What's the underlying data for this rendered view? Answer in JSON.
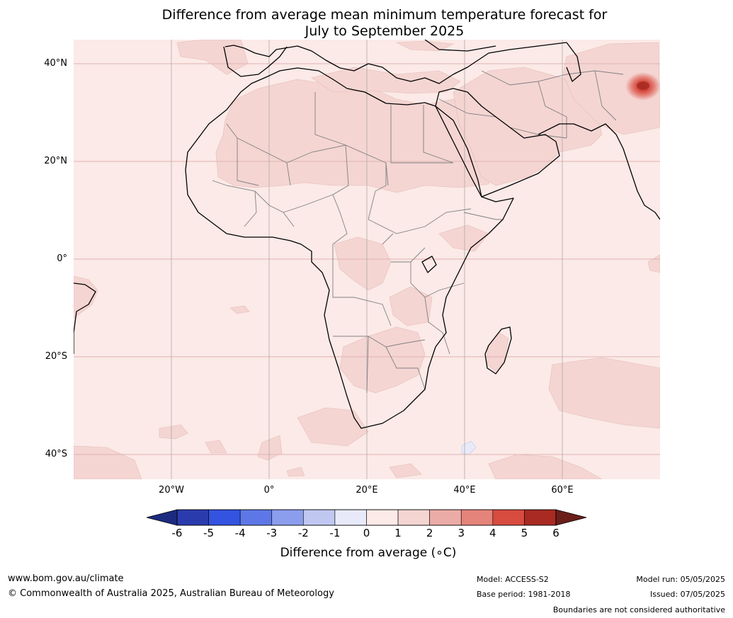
{
  "title": {
    "line1": "Difference from average mean minimum temperature forecast for",
    "line2": "July to September 2025"
  },
  "map": {
    "region": "Africa and Middle East",
    "latitude_labels": [
      "40°N",
      "20°N",
      "0°",
      "20°S",
      "40°S"
    ],
    "longitude_labels": [
      "20°W",
      "0°",
      "20°E",
      "40°E",
      "60°E"
    ],
    "base_color": "#fbeae7",
    "anomaly_1_2_color": "#f4d5d2",
    "hotspot_color": "#d84b3f",
    "gridline_color": "#e0b3b3",
    "coast_color": "#000000",
    "border_color": "#808080"
  },
  "colorbar": {
    "title": "Difference from average (∘C)",
    "ticks": [
      "-6",
      "-5",
      "-4",
      "-3",
      "-2",
      "-1",
      "0",
      "1",
      "2",
      "3",
      "4",
      "5",
      "6"
    ],
    "low_extend_color": "#1c2b7f",
    "high_extend_color": "#6b1e1a",
    "bin_colors": [
      "#2a3cad",
      "#3353e0",
      "#5d78e6",
      "#8b9ded",
      "#c0c8f2",
      "#e8eafa",
      "#fbeae7",
      "#f4d5d2",
      "#ebaba6",
      "#e4847b",
      "#d84b3f",
      "#a82a22"
    ]
  },
  "footer": {
    "website": "www.bom.gov.au/climate",
    "copyright": "© Commonwealth of Australia 2025, Australian Bureau of Meteorology",
    "model": "Model: ACCESS-S2",
    "base_period": "Base period: 1981-2018",
    "model_run": "Model run: 05/05/2025",
    "issued": "Issued: 07/05/2025",
    "disclaimer": "Boundaries are not considered authoritative"
  }
}
